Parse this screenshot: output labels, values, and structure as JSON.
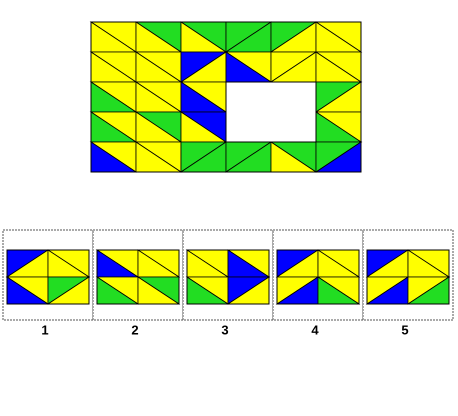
{
  "options": {
    "labels": [
      "1",
      "2",
      "3",
      "4",
      "5"
    ]
  }
}
